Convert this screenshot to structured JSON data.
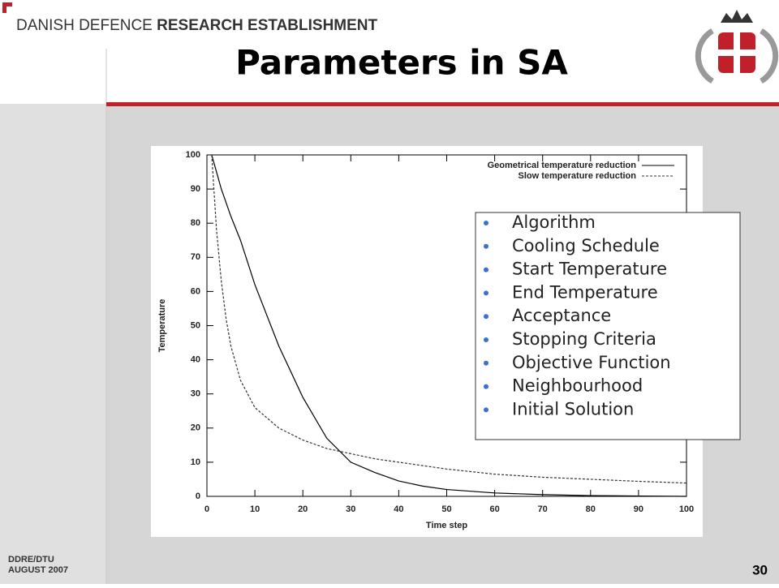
{
  "header": {
    "org_prefix": "DANISH DEFENCE",
    "org_emphasis": "RESEARCH ESTABLISHMENT",
    "title": "Parameters in SA"
  },
  "chart_data": {
    "type": "line",
    "x_label": "Time step",
    "y_label": "Temperature",
    "x": [
      1,
      2,
      3,
      4,
      5,
      7,
      10,
      15,
      20,
      25,
      30,
      35,
      40,
      45,
      50,
      60,
      70,
      80,
      90,
      100
    ],
    "series": [
      {
        "name": "Geometrical temperature reduction",
        "color": "#000000",
        "style": "solid",
        "values": [
          100,
          95,
          90,
          86,
          82,
          75,
          62,
          44,
          29,
          17,
          10,
          7,
          4.5,
          3,
          2,
          1,
          0.5,
          0.2,
          0.1,
          0
        ]
      },
      {
        "name": "Slow temperature reduction",
        "color": "#333333",
        "style": "dashed",
        "values": [
          100,
          78,
          63,
          52,
          44,
          34,
          26,
          20,
          16.5,
          14,
          12.5,
          11,
          10,
          9,
          8,
          6.5,
          5.6,
          5,
          4.4,
          3.9
        ]
      }
    ],
    "xlim": [
      0,
      100
    ],
    "xticks": [
      0,
      10,
      20,
      30,
      40,
      50,
      60,
      70,
      80,
      90,
      100
    ],
    "ylim": [
      0,
      100
    ],
    "yticks": [
      0,
      10,
      20,
      30,
      40,
      50,
      60,
      70,
      80,
      90,
      100
    ],
    "legend": "top-right"
  },
  "list": {
    "items": [
      "Algorithm",
      "Cooling Schedule",
      "Start Temperature",
      "End Temperature",
      "Acceptance",
      "Stopping Criteria",
      "Objective Function",
      "Neighbourhood",
      "Initial Solution"
    ]
  },
  "footer": {
    "line1": "DDRE/DTU",
    "line2": "AUGUST 2007",
    "page": "30"
  }
}
